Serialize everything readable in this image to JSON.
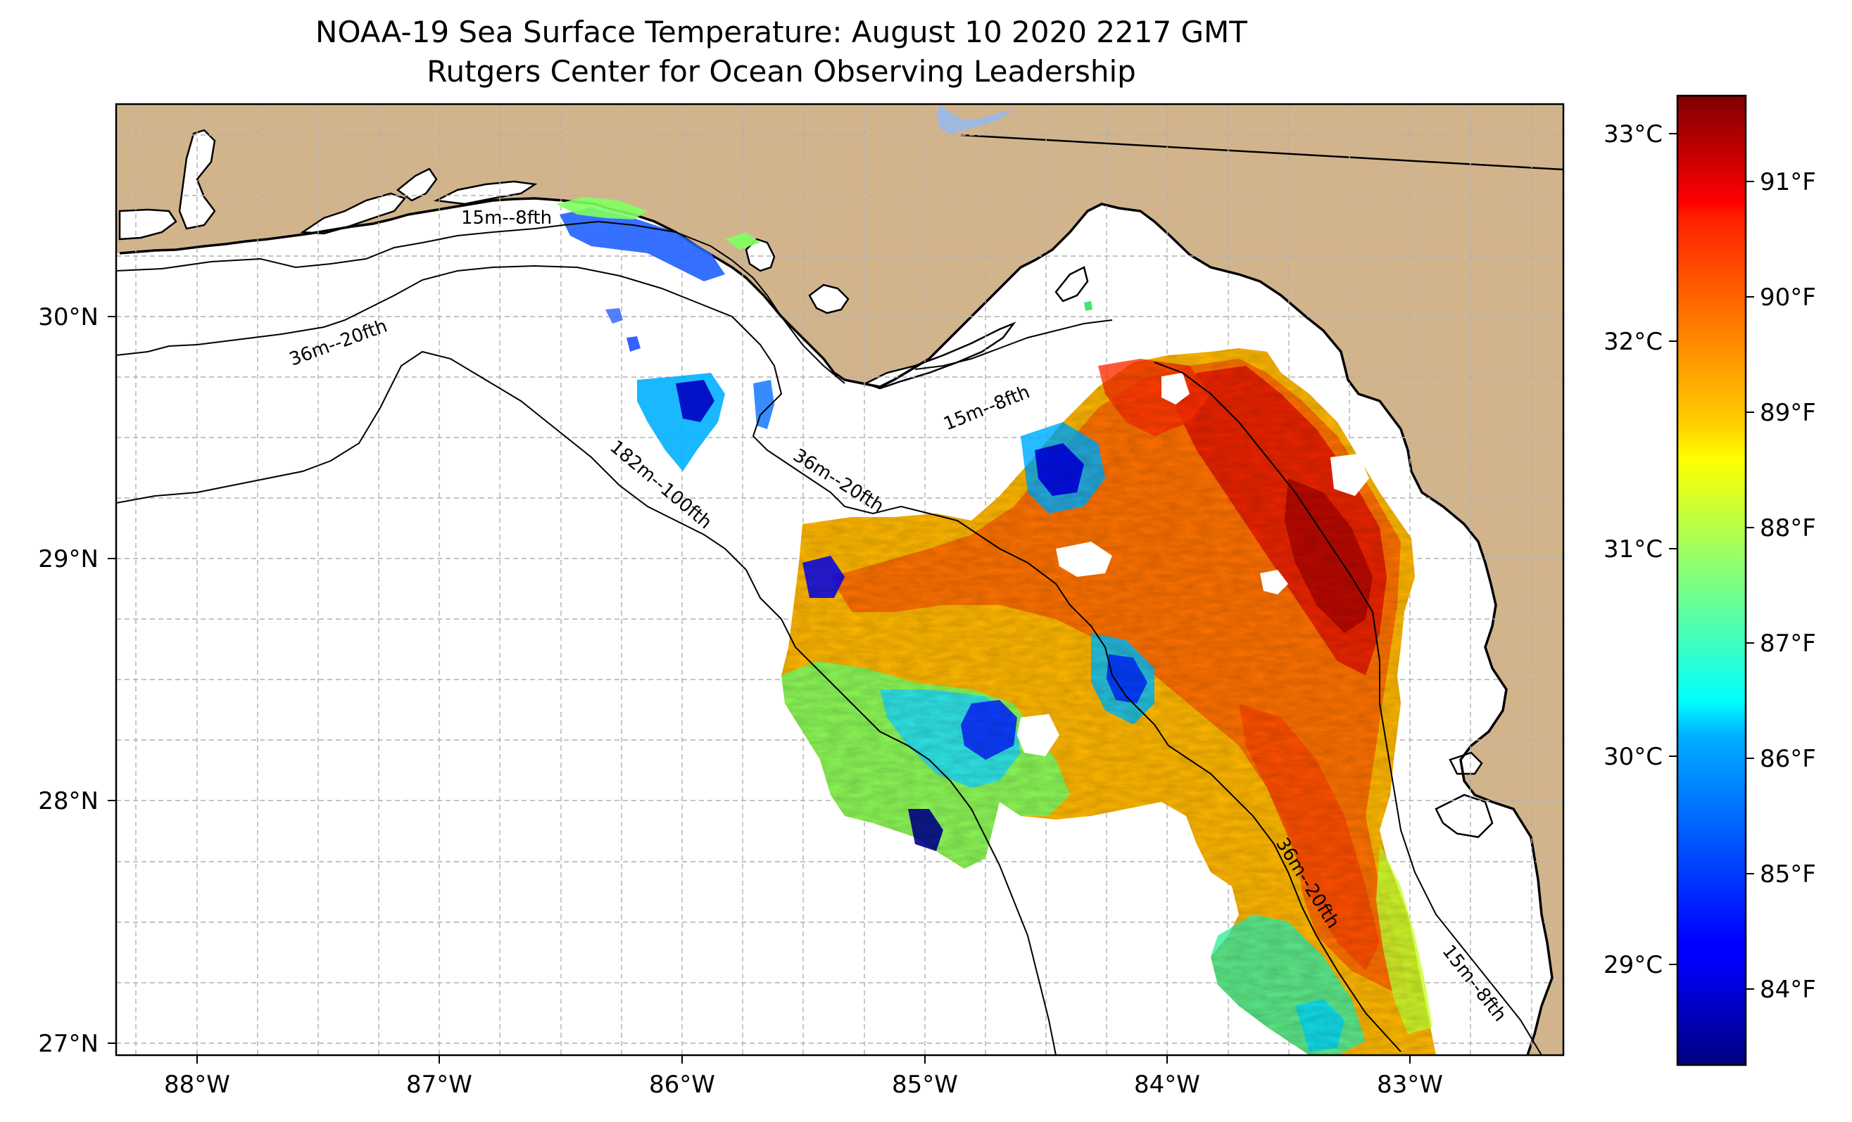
{
  "title": "NOAA-19 Sea Surface Temperature: August 10 2020 2217 GMT",
  "subtitle": "Rutgers Center for Ocean Observing Leadership",
  "map": {
    "lon_range": [
      -88.3,
      -82.4
    ],
    "lat_range": [
      26.93,
      30.85
    ],
    "gridlines": true,
    "lon_ticks": [
      -88,
      -87,
      -86,
      -85,
      -84,
      -83
    ],
    "lon_tick_labels": [
      "88°W",
      "87°W",
      "86°W",
      "85°W",
      "84°W",
      "83°W"
    ],
    "lat_ticks": [
      27,
      28,
      29,
      30
    ],
    "lat_tick_labels": [
      "27°N",
      "28°N",
      "29°N",
      "30°N"
    ],
    "land_color": "#d2b48c",
    "lake_color": "#9fb8e0",
    "ocean_color": "#ffffff"
  },
  "isobaths": [
    {
      "label": "15m--8fth",
      "placement": "Pensacola shelf, near coast"
    },
    {
      "label": "15m--8fth",
      "placement": "Apalachee Bay"
    },
    {
      "label": "15m--8fth",
      "placement": "west Florida shelf, southeast"
    },
    {
      "label": "36m--20fth",
      "placement": "west of De Soto Canyon"
    },
    {
      "label": "36m--20fth",
      "placement": "Cape San Blas"
    },
    {
      "label": "36m--20fth",
      "placement": "west Florida shelf, south"
    },
    {
      "label": "182m--100fth",
      "placement": "De Soto Canyon"
    }
  ],
  "colorbar": {
    "colormap": "jet",
    "celsius_ticks": [
      "29°C",
      "30°C",
      "31°C",
      "32°C",
      "33°C"
    ],
    "fahrenheit_ticks": [
      "84°F",
      "85°F",
      "86°F",
      "87°F",
      "88°F",
      "89°F",
      "90°F",
      "91°F"
    ],
    "vmin_f": 83.4,
    "vmax_f": 91.8
  },
  "sst_summary": {
    "coverage": "Big Bend / west Florida shelf swath from about 85.5°W to 82.9°W and 27.0°N to 29.9°N, plus small patches off the Florida Panhandle",
    "warmest_f": 91.5,
    "coolest_f": 84.0,
    "warm_region": "nearshore Big Bend, about 83.2°W–83.6°W, 28.7°N–29.3°N",
    "cool_region": "scattered cold patches near 84.8°W–85.3°W, 28.0°N–28.3°N"
  }
}
